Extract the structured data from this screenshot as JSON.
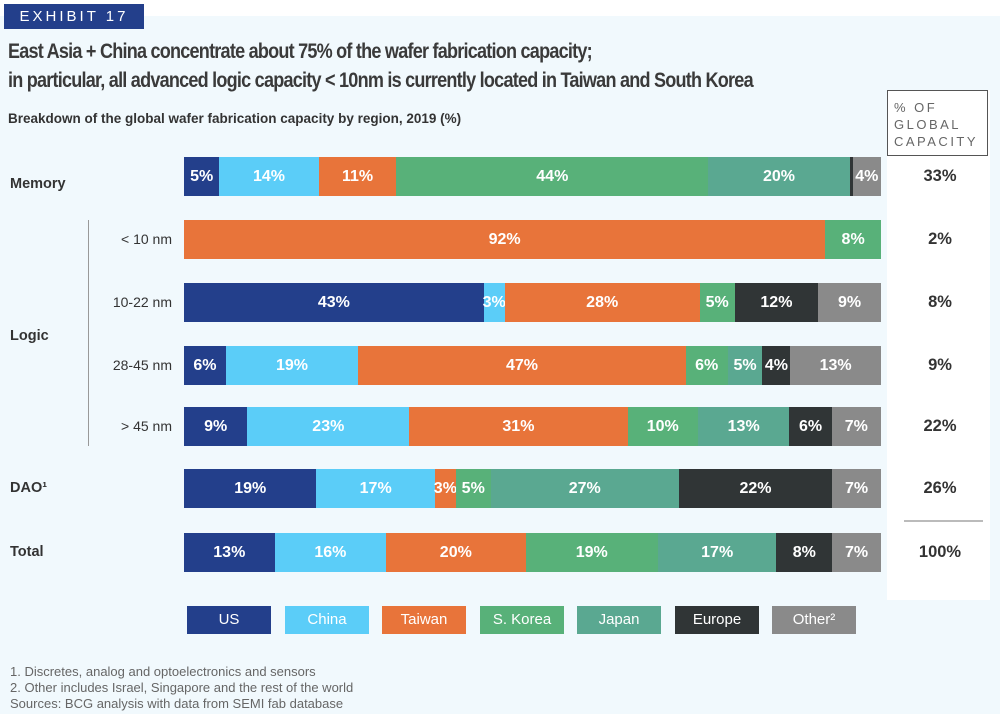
{
  "exhibit": "EXHIBIT 17",
  "title_lines": [
    "East Asia + China concentrate about 75% of the wafer fabrication capacity;",
    "in particular, all advanced logic capacity < 10nm is currently located in Taiwan and South Korea"
  ],
  "right_header": "% OF GLOBAL CAPACITY",
  "chart_data": {
    "type": "bar",
    "orientation": "horizontal-stacked-100",
    "title": "Breakdown of the global wafer fabrication capacity by region, 2019 (%)",
    "series_names": [
      "US",
      "China",
      "Taiwan",
      "S. Korea",
      "Japan",
      "Europe",
      "Other²"
    ],
    "colors": [
      "#233f8b",
      "#5bcdf8",
      "#e8743a",
      "#58b179",
      "#5aa891",
      "#303536",
      "#8a8a8a"
    ],
    "rows": [
      {
        "group": "Memory",
        "label": "",
        "values": [
          5,
          14,
          11,
          44,
          20,
          0.4,
          4
        ],
        "share": "33%"
      },
      {
        "group": "Logic",
        "label": "< 10 nm",
        "values": [
          0,
          0,
          92,
          8,
          0,
          0,
          0
        ],
        "share": "2%"
      },
      {
        "group": "Logic",
        "label": "10-22 nm",
        "values": [
          43,
          3,
          28,
          5,
          0,
          12,
          9
        ],
        "share": "8%"
      },
      {
        "group": "Logic",
        "label": "28-45 nm",
        "values": [
          6,
          19,
          47,
          6,
          5,
          4,
          13
        ],
        "share": "9%"
      },
      {
        "group": "Logic",
        "label": "> 45 nm",
        "values": [
          9,
          23,
          31,
          10,
          13,
          6,
          7
        ],
        "share": "22%"
      },
      {
        "group": "DAO¹",
        "label": "",
        "values": [
          19,
          17,
          3,
          5,
          27,
          22,
          7
        ],
        "share": "26%"
      },
      {
        "group": "Total",
        "label": "",
        "values": [
          13,
          16,
          20,
          19,
          17,
          8,
          7
        ],
        "share": "100%"
      }
    ],
    "group_labels": {
      "memory": "Memory",
      "logic": "Logic",
      "dao": "DAO¹",
      "total": "Total"
    },
    "legend": "bottom"
  },
  "footnotes": [
    "1.  Discretes, analog and optoelectronics and sensors",
    "2. Other includes Israel, Singapore and the rest of the world",
    "Sources: BCG analysis with data from SEMI fab database"
  ]
}
